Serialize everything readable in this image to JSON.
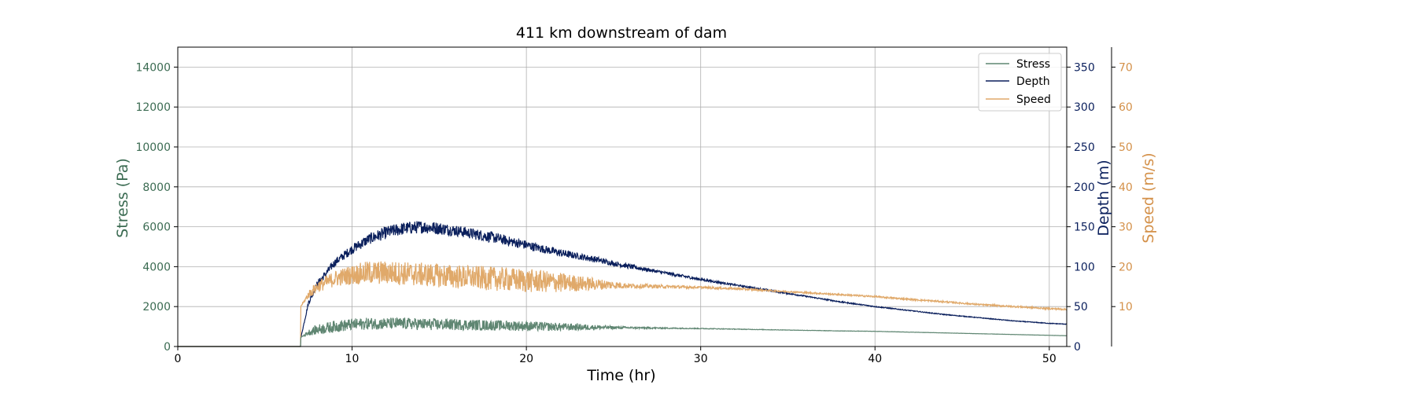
{
  "chart_data": {
    "type": "line",
    "title": "411 km downstream of dam",
    "xlabel": "Time (hr)",
    "xlim": [
      0,
      51
    ],
    "xticks": [
      0,
      10,
      20,
      30,
      40,
      50
    ],
    "grid": true,
    "legend_placement": "top-right",
    "axes": {
      "left": {
        "label": "Stress (Pa)",
        "ylim": [
          0,
          15000
        ],
        "ticks": [
          0,
          2000,
          4000,
          6000,
          8000,
          10000,
          12000,
          14000
        ],
        "color": "#3b6b52"
      },
      "right1": {
        "label": "Depth (m)",
        "ylim": [
          0,
          375
        ],
        "ticks": [
          0,
          50,
          100,
          150,
          200,
          250,
          300,
          350
        ],
        "color": "#0a1f5c"
      },
      "right2": {
        "label": "Speed (m/s)",
        "ylim": [
          0,
          75
        ],
        "ticks": [
          10,
          20,
          30,
          40,
          50,
          60,
          70
        ],
        "color": "#d4914a"
      }
    },
    "series": [
      {
        "name": "Stress",
        "axis": "left",
        "color": "#5f8672",
        "x": [
          0,
          7.0,
          7.05,
          7.5,
          8,
          9,
          10,
          11,
          12,
          13,
          14,
          15,
          16,
          17,
          18,
          19,
          20,
          21,
          22,
          23,
          24,
          25,
          26,
          27,
          28,
          29,
          30,
          32,
          34,
          36,
          38,
          40,
          42,
          44,
          46,
          48,
          50,
          51
        ],
        "y": [
          0,
          0,
          450,
          700,
          850,
          1000,
          1100,
          1150,
          1150,
          1150,
          1120,
          1100,
          1100,
          1080,
          1060,
          1050,
          1020,
          1000,
          980,
          970,
          960,
          950,
          940,
          930,
          920,
          910,
          900,
          870,
          840,
          810,
          780,
          760,
          720,
          680,
          640,
          600,
          560,
          540
        ],
        "noise": [
          0,
          0,
          0,
          150,
          250,
          300,
          300,
          300,
          300,
          300,
          300,
          300,
          280,
          280,
          260,
          260,
          250,
          230,
          200,
          170,
          120,
          80,
          50,
          40,
          30,
          25,
          20,
          15,
          12,
          10,
          10,
          8,
          8,
          6,
          6,
          5,
          5,
          5
        ]
      },
      {
        "name": "Depth",
        "axis": "right1",
        "color": "#0a1f5c",
        "x": [
          0,
          7.0,
          7.05,
          7.5,
          8,
          9,
          10,
          11,
          12,
          13,
          14,
          15,
          16,
          17,
          18,
          19,
          20,
          21,
          22,
          23,
          24,
          25,
          26,
          27,
          28,
          29,
          30,
          32,
          34,
          36,
          38,
          40,
          42,
          44,
          46,
          48,
          50,
          51
        ],
        "y": [
          0,
          0,
          10,
          55,
          78,
          105,
          122,
          135,
          143,
          148,
          150,
          148,
          145,
          141,
          137,
          132,
          127,
          122,
          117,
          113,
          109,
          104,
          100,
          96,
          92,
          88,
          84,
          77,
          70,
          63,
          56,
          50,
          45,
          40,
          36,
          32,
          29,
          28
        ],
        "noise": [
          0,
          0,
          0,
          3,
          4,
          5,
          6,
          7,
          8,
          8,
          8,
          8,
          7,
          7,
          7,
          6,
          6,
          5,
          5,
          4,
          4,
          3,
          3,
          2,
          2,
          2,
          1.5,
          1,
          1,
          0.8,
          0.8,
          0.6,
          0.5,
          0.5,
          0.4,
          0.4,
          0.4,
          0.4
        ]
      },
      {
        "name": "Speed",
        "axis": "right2",
        "color": "#e0a96a",
        "x": [
          0,
          7.0,
          7.05,
          7.5,
          8,
          9,
          10,
          11,
          12,
          13,
          14,
          15,
          16,
          17,
          18,
          19,
          20,
          21,
          22,
          23,
          24,
          25,
          26,
          27,
          28,
          29,
          30,
          32,
          34,
          36,
          38,
          40,
          42,
          44,
          46,
          48,
          50,
          51
        ],
        "y": [
          0,
          0,
          10,
          13,
          15,
          17,
          18,
          18.5,
          18.5,
          18.3,
          18,
          17.8,
          17.5,
          17.3,
          17,
          16.8,
          16.5,
          16.3,
          16,
          15.8,
          15.6,
          15.4,
          15.2,
          15.1,
          15,
          14.9,
          14.8,
          14.5,
          14,
          13.5,
          13,
          12.5,
          11.8,
          11.2,
          10.5,
          10,
          9.5,
          9.3
        ],
        "noise": [
          0,
          0,
          0,
          1,
          1.5,
          2,
          2.5,
          3,
          3,
          3,
          3,
          3,
          3,
          3,
          3,
          3,
          3,
          2.8,
          2.5,
          2,
          1.5,
          1.0,
          0.6,
          0.5,
          0.4,
          0.35,
          0.3,
          0.25,
          0.2,
          0.2,
          0.2,
          0.2,
          0.2,
          0.2,
          0.2,
          0.2,
          0.2,
          0.2
        ]
      }
    ]
  }
}
